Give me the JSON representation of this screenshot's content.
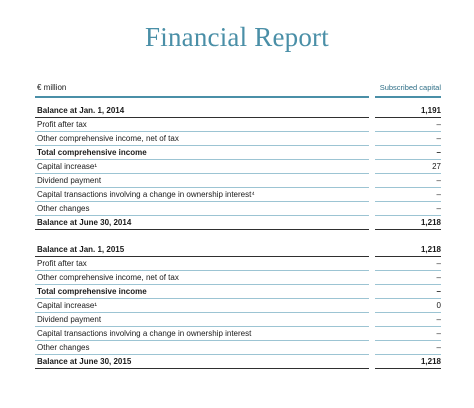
{
  "title": "Financial Report",
  "header": {
    "unit": "€ million",
    "column": "Subscribed capital"
  },
  "sections": [
    {
      "rows": [
        {
          "label": "Balance at Jan. 1, 2014",
          "value": "1,191",
          "bold": true
        },
        {
          "label": "Profit after tax",
          "value": "–",
          "bold": false
        },
        {
          "label": "Other comprehensive income, net of tax",
          "value": "–",
          "bold": false
        },
        {
          "label": "Total comprehensive income",
          "value": "–",
          "bold": true
        },
        {
          "label": "Capital increase¹",
          "value": "27",
          "bold": false
        },
        {
          "label": "Dividend payment",
          "value": "–",
          "bold": false
        },
        {
          "label": "Capital transactions involving a change in ownership interest⁴",
          "value": "–",
          "bold": false
        },
        {
          "label": "Other changes",
          "value": "–",
          "bold": false
        },
        {
          "label": "Balance at June 30, 2014",
          "value": "1,218",
          "bold": true
        }
      ]
    },
    {
      "rows": [
        {
          "label": "Balance at Jan. 1, 2015",
          "value": "1,218",
          "bold": true
        },
        {
          "label": "Profit after tax",
          "value": "–",
          "bold": false
        },
        {
          "label": "Other comprehensive income, net of tax",
          "value": "–",
          "bold": false
        },
        {
          "label": "Total comprehensive income",
          "value": "–",
          "bold": true
        },
        {
          "label": "Capital increase¹",
          "value": "0",
          "bold": false
        },
        {
          "label": "Dividend payment",
          "value": "–",
          "bold": false
        },
        {
          "label": "Capital transactions involving a change in ownership interest",
          "value": "–",
          "bold": false
        },
        {
          "label": "Other changes",
          "value": "–",
          "bold": false
        },
        {
          "label": "Balance at June 30, 2015",
          "value": "1,218",
          "bold": true
        }
      ]
    }
  ]
}
